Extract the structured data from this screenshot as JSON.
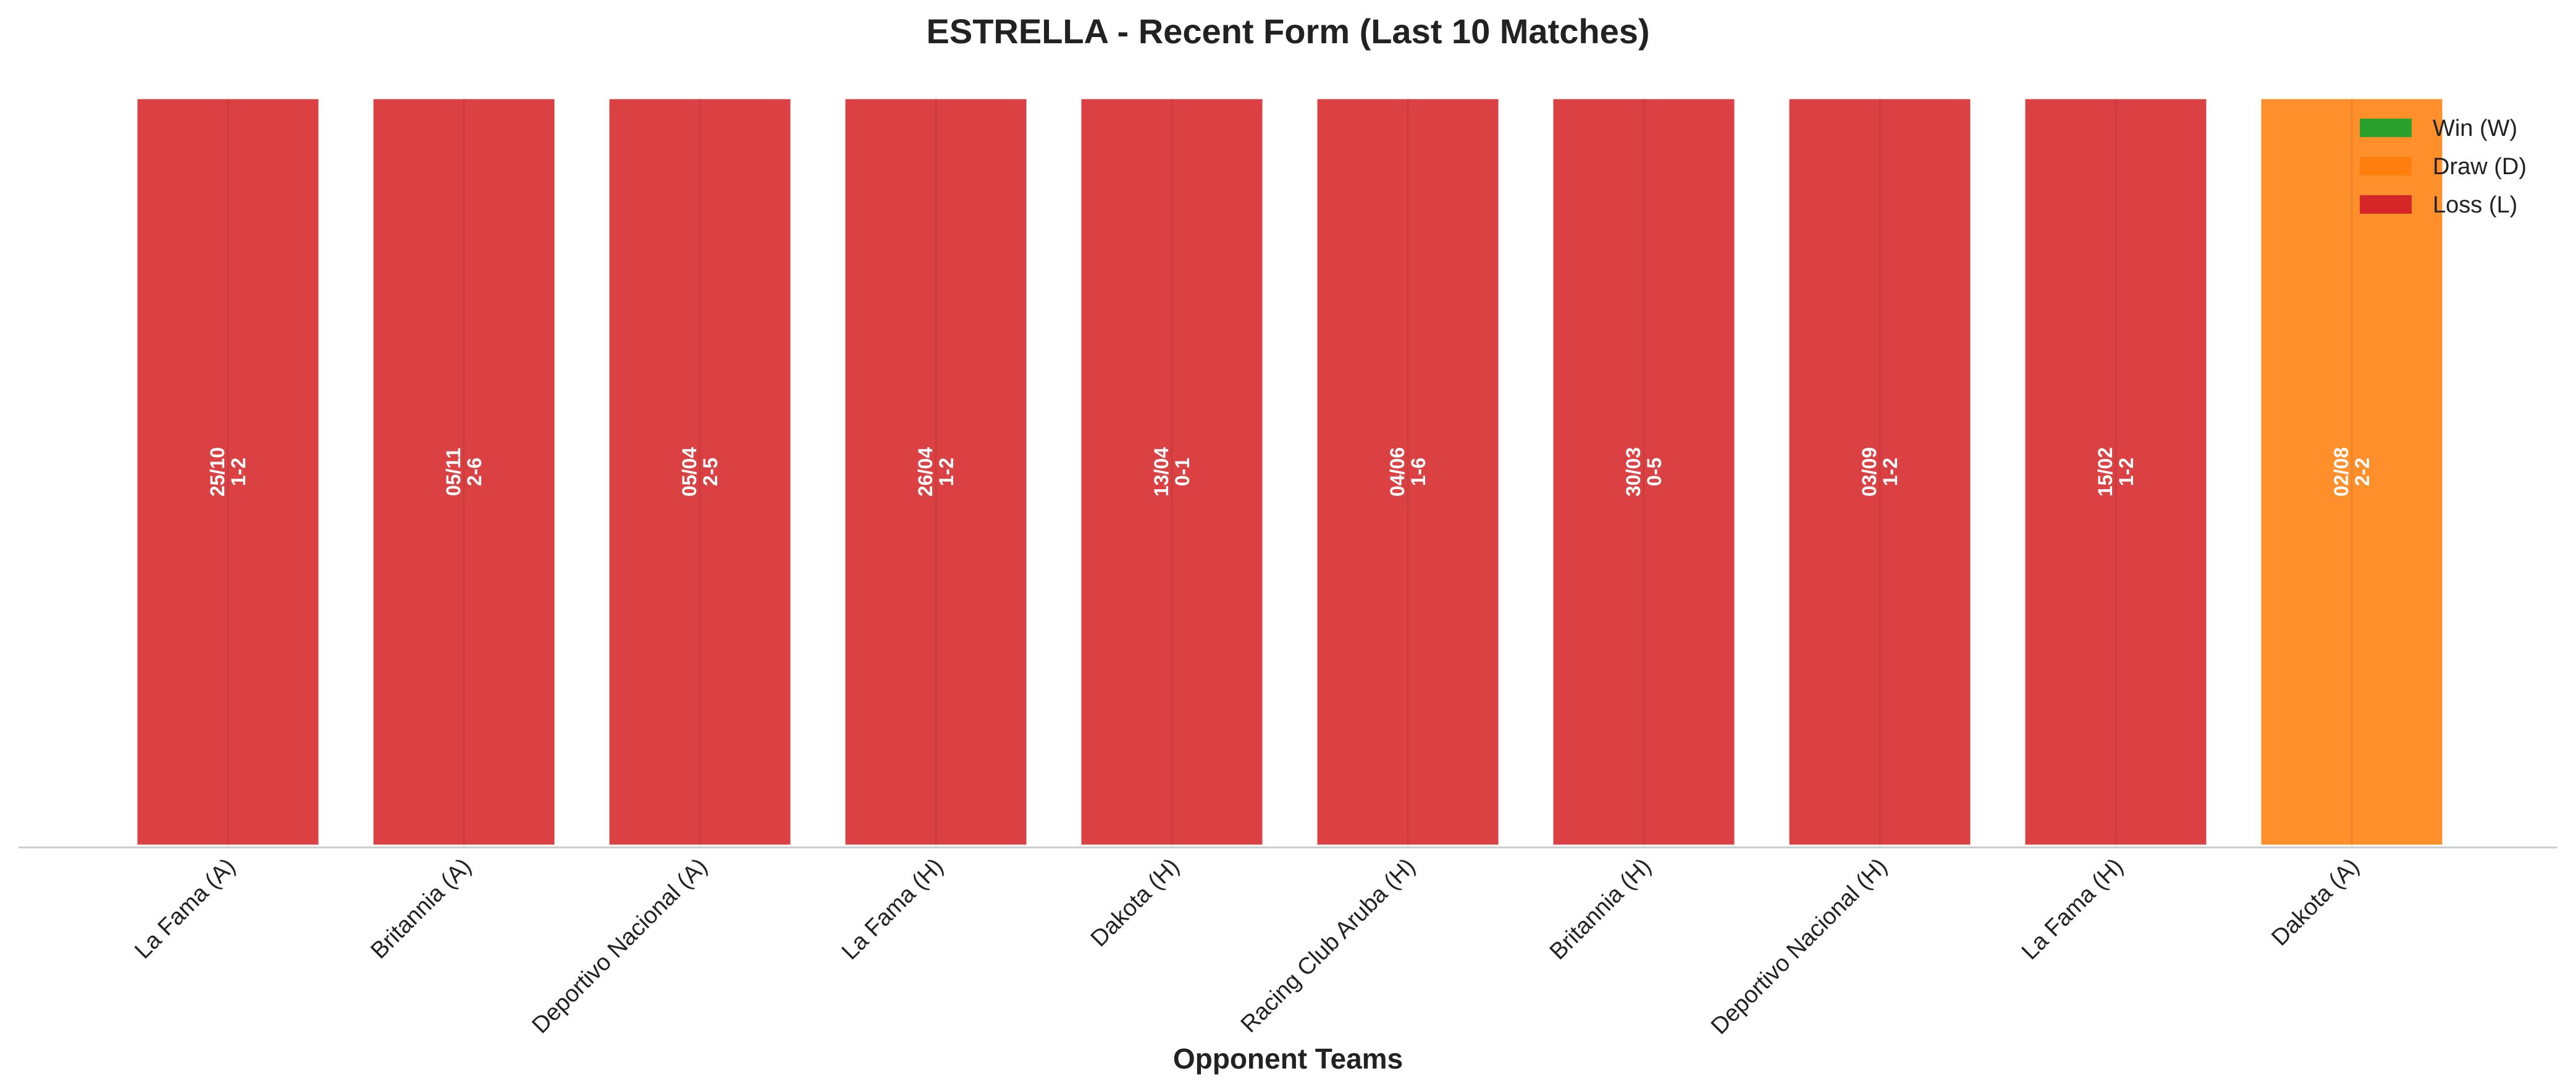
{
  "chart_data": {
    "type": "bar",
    "title": "ESTRELLA - Recent Form (Last 10 Matches)",
    "xlabel": "Opponent Teams",
    "ylabel": "",
    "ylim": [
      0,
      1
    ],
    "grid": false,
    "legend_position": "top-right",
    "categories": [
      "La Fama (A)",
      "Britannia (A)",
      "Deportivo Nacional (A)",
      "La Fama (H)",
      "Dakota (H)",
      "Racing Club Aruba (H)",
      "Britannia (H)",
      "Deportivo Nacional (H)",
      "La Fama (H)",
      "Dakota (A)"
    ],
    "values": [
      1,
      1,
      1,
      1,
      1,
      1,
      1,
      1,
      1,
      1
    ],
    "results": [
      "L",
      "L",
      "L",
      "L",
      "L",
      "L",
      "L",
      "L",
      "L",
      "D"
    ],
    "dates": [
      "25/10",
      "05/11",
      "05/04",
      "26/04",
      "13/04",
      "04/06",
      "30/03",
      "03/09",
      "15/02",
      "02/08"
    ],
    "scores": [
      "1-2",
      "2-6",
      "2-5",
      "1-2",
      "0-1",
      "1-6",
      "0-5",
      "1-2",
      "1-2",
      "2-2"
    ],
    "legend": [
      {
        "key": "W",
        "label": "Win (W)",
        "color": "#2ca02c"
      },
      {
        "key": "D",
        "label": "Draw (D)",
        "color": "#ff7f0e"
      },
      {
        "key": "L",
        "label": "Loss (L)",
        "color": "#d62728"
      }
    ]
  }
}
